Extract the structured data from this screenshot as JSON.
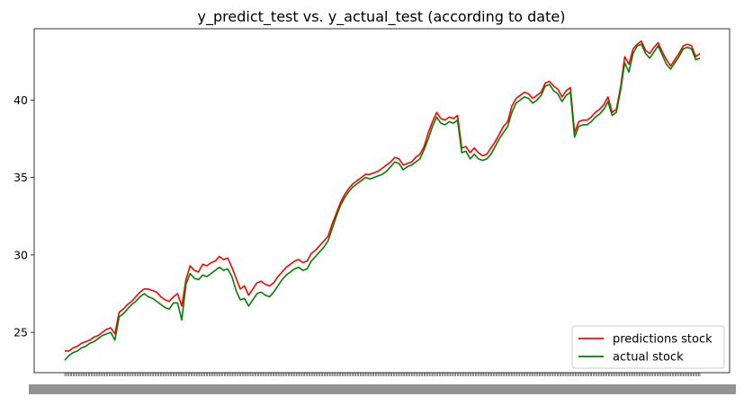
{
  "chart_data": {
    "type": "line",
    "title": "y_predict_test   vs.   y_actual_test  (according to date)",
    "xlabel": "",
    "ylabel": "",
    "ylim": [
      22.4,
      44.6
    ],
    "yticks": [
      25,
      30,
      35,
      40
    ],
    "ytick_labels": [
      "25",
      "30",
      "35",
      "40"
    ],
    "grid": false,
    "legend_position": "bottom-right",
    "x_tick_note": "dense overlapping date tick labels (unreadable)",
    "series": [
      {
        "name": "predictions stock",
        "color": "#ff0000",
        "values": [
          23.8,
          23.8,
          24.0,
          24.1,
          24.3,
          24.4,
          24.5,
          24.7,
          24.8,
          25.0,
          25.2,
          25.3,
          24.9,
          26.3,
          26.5,
          26.8,
          27.0,
          27.3,
          27.6,
          27.8,
          27.8,
          27.7,
          27.6,
          27.3,
          27.1,
          27.0,
          27.3,
          27.5,
          26.7,
          28.4,
          29.3,
          29.0,
          28.9,
          29.4,
          29.3,
          29.5,
          29.6,
          29.9,
          29.7,
          29.8,
          29.2,
          28.5,
          27.8,
          28.0,
          27.4,
          27.8,
          28.2,
          28.3,
          28.1,
          28.0,
          28.2,
          28.6,
          28.9,
          29.2,
          29.4,
          29.6,
          29.7,
          29.5,
          29.6,
          30.1,
          30.3,
          30.6,
          30.9,
          31.2,
          32.0,
          32.7,
          33.4,
          33.9,
          34.3,
          34.6,
          34.8,
          35.0,
          35.2,
          35.2,
          35.3,
          35.4,
          35.6,
          35.8,
          36.0,
          36.3,
          36.2,
          35.8,
          35.9,
          36.0,
          36.3,
          36.5,
          37.0,
          37.9,
          38.6,
          39.2,
          38.8,
          38.7,
          38.9,
          38.8,
          39.0,
          36.9,
          37.0,
          36.6,
          36.9,
          36.6,
          36.4,
          36.5,
          36.9,
          37.3,
          37.8,
          38.3,
          38.6,
          39.6,
          40.1,
          40.3,
          40.5,
          40.4,
          40.1,
          40.3,
          40.5,
          41.1,
          41.2,
          40.9,
          40.7,
          40.2,
          40.6,
          40.8,
          37.9,
          38.6,
          38.7,
          38.7,
          38.9,
          39.2,
          39.4,
          39.7,
          40.2,
          39.2,
          39.4,
          40.8,
          42.8,
          42.3,
          43.3,
          43.6,
          43.8,
          43.2,
          43.0,
          43.4,
          43.7,
          43.1,
          42.6,
          42.2,
          42.6,
          43.0,
          43.5,
          43.6,
          43.5,
          42.8,
          43.0
        ]
      },
      {
        "name": "actual stock",
        "color": "#008000",
        "values": [
          23.2,
          23.5,
          23.7,
          23.8,
          24.0,
          24.1,
          24.3,
          24.4,
          24.6,
          24.8,
          24.9,
          25.0,
          24.5,
          26.0,
          26.2,
          26.5,
          26.8,
          27.0,
          27.3,
          27.5,
          27.3,
          27.2,
          27.0,
          26.8,
          26.6,
          26.5,
          26.9,
          26.9,
          25.8,
          28.1,
          28.8,
          28.5,
          28.4,
          28.7,
          28.6,
          28.8,
          29.0,
          29.2,
          29.0,
          29.1,
          28.6,
          27.7,
          27.1,
          27.2,
          26.7,
          27.1,
          27.5,
          27.6,
          27.4,
          27.3,
          27.6,
          28.0,
          28.4,
          28.7,
          28.9,
          29.1,
          29.2,
          29.0,
          29.1,
          29.6,
          29.9,
          30.2,
          30.5,
          30.9,
          31.7,
          32.5,
          33.2,
          33.7,
          34.1,
          34.4,
          34.6,
          34.8,
          35.0,
          34.9,
          35.0,
          35.1,
          35.2,
          35.4,
          35.7,
          36.0,
          35.9,
          35.5,
          35.7,
          35.8,
          36.0,
          36.2,
          36.8,
          37.5,
          38.3,
          38.9,
          38.5,
          38.4,
          38.6,
          38.5,
          38.7,
          36.6,
          36.7,
          36.2,
          36.5,
          36.2,
          36.1,
          36.2,
          36.5,
          37.0,
          37.5,
          37.9,
          38.3,
          39.2,
          39.8,
          40.0,
          40.2,
          40.1,
          39.8,
          40.0,
          40.3,
          40.9,
          41.0,
          40.6,
          40.4,
          39.9,
          40.3,
          40.5,
          37.6,
          38.3,
          38.4,
          38.4,
          38.6,
          38.9,
          39.1,
          39.4,
          39.9,
          39.0,
          39.2,
          40.6,
          42.4,
          41.8,
          43.0,
          43.5,
          43.6,
          43.0,
          42.7,
          43.1,
          43.5,
          42.9,
          42.3,
          42.0,
          42.4,
          42.8,
          43.3,
          43.4,
          43.3,
          42.6,
          42.7
        ]
      }
    ]
  }
}
